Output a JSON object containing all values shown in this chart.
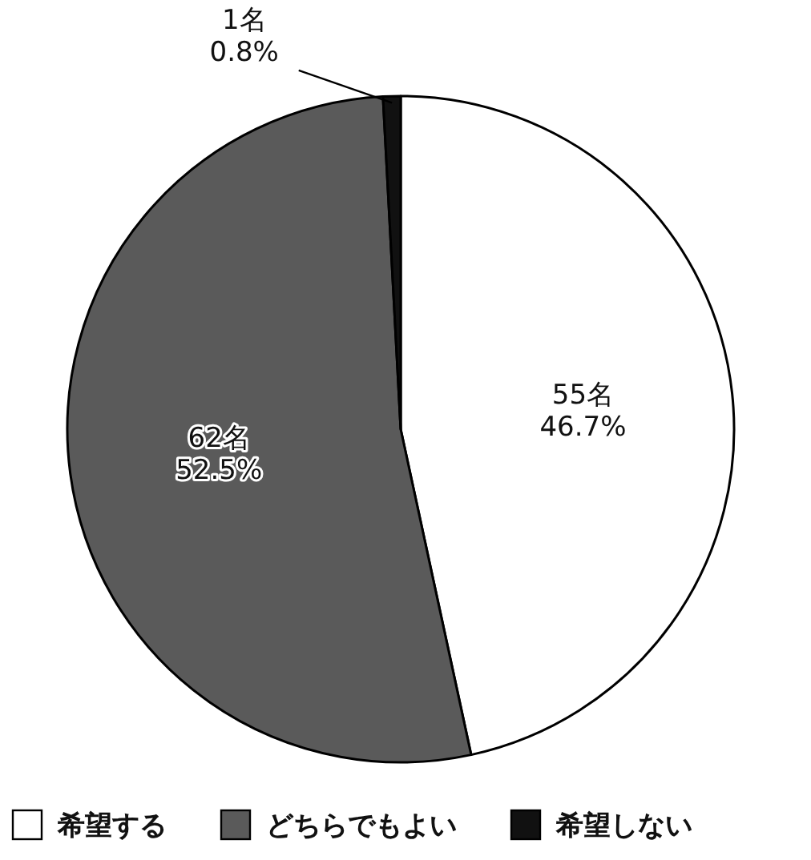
{
  "chart_data": {
    "type": "pie",
    "categories": [
      "希望する",
      "どちらでもよい",
      "希望しない"
    ],
    "values": [
      55,
      62,
      1
    ],
    "value_labels": [
      "55名\n46.7%",
      "62名\n52.5%",
      "1名\n0.8%"
    ],
    "colors": [
      "#ffffff",
      "#5a5a5a",
      "#111111"
    ],
    "legend": "bottom"
  }
}
